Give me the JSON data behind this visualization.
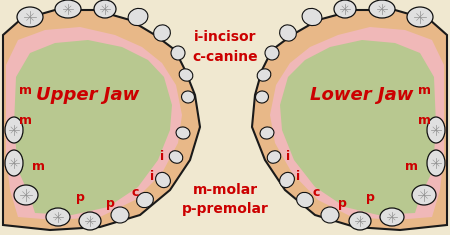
{
  "bg_color": "#f0e8d0",
  "upper_jaw_label": "Upper Jaw",
  "lower_jaw_label": "Lower Jaw",
  "legend_top": "i-incisor\nc-canine",
  "legend_bottom": "m-molar\np-premolar",
  "jaw_fill_outer": "#e8b888",
  "jaw_fill_inner_pink": "#f0b8b8",
  "jaw_fill_green": "#b8c890",
  "jaw_outline": "#1a1a1a",
  "tooth_fill": "#e0e0e0",
  "tooth_outline": "#111111",
  "label_color": "#cc0000",
  "label_fontsize": 8,
  "jaw_label_fontsize": 13
}
